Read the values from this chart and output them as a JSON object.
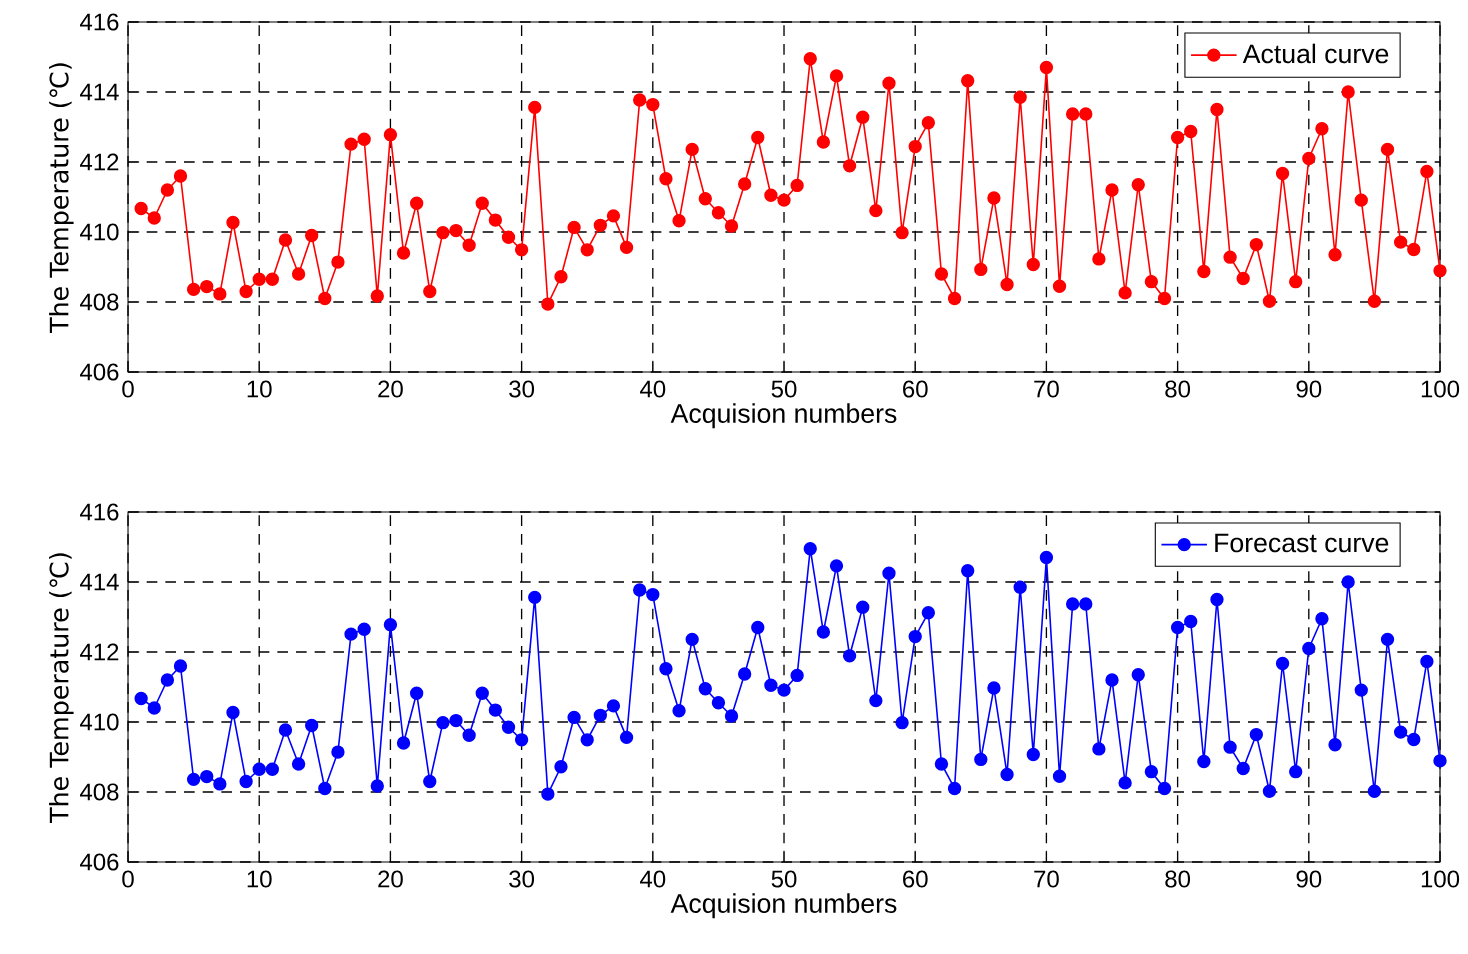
{
  "chart_data": [
    {
      "type": "line",
      "xlabel": "Acquision numbers",
      "ylabel": "The Temperature (℃)",
      "xlim": [
        0,
        100
      ],
      "xticks": [
        0,
        10,
        20,
        30,
        40,
        50,
        60,
        70,
        80,
        90,
        100
      ],
      "ylim": [
        406,
        416
      ],
      "yticks": [
        406,
        408,
        410,
        412,
        414,
        416
      ],
      "grid": true,
      "legend": "top right",
      "marker": "circle",
      "x": [
        1,
        2,
        3,
        4,
        5,
        6,
        7,
        8,
        9,
        10,
        11,
        12,
        13,
        14,
        15,
        16,
        17,
        18,
        19,
        20,
        21,
        22,
        23,
        24,
        25,
        26,
        27,
        28,
        29,
        30,
        31,
        32,
        33,
        34,
        35,
        36,
        37,
        38,
        39,
        40,
        41,
        42,
        43,
        44,
        45,
        46,
        47,
        48,
        49,
        50,
        51,
        52,
        53,
        54,
        55,
        56,
        57,
        58,
        59,
        60,
        61,
        62,
        63,
        64,
        65,
        66,
        67,
        68,
        69,
        70,
        71,
        72,
        73,
        74,
        75,
        76,
        77,
        78,
        79,
        80,
        81,
        82,
        83,
        84,
        85,
        86,
        87,
        88,
        89,
        90,
        91,
        92,
        93,
        94,
        95,
        96,
        97,
        98,
        99,
        100
      ],
      "series": [
        {
          "name": "Actual curve",
          "color": "#ff0000",
          "values": [
            410.67,
            410.4,
            411.2,
            411.6,
            408.36,
            408.44,
            408.23,
            410.27,
            408.3,
            408.65,
            408.65,
            409.77,
            408.8,
            409.9,
            408.1,
            409.14,
            412.51,
            412.65,
            408.17,
            412.78,
            409.4,
            410.82,
            408.3,
            409.98,
            410.04,
            409.62,
            410.82,
            410.34,
            409.85,
            409.49,
            413.56,
            407.94,
            408.72,
            410.13,
            409.49,
            410.19,
            410.46,
            409.56,
            413.77,
            413.64,
            411.52,
            410.32,
            412.36,
            410.95,
            410.55,
            410.17,
            411.37,
            412.7,
            411.05,
            410.91,
            411.33,
            414.95,
            412.57,
            414.46,
            411.89,
            413.28,
            410.61,
            414.25,
            409.98,
            412.44,
            413.12,
            408.8,
            408.1,
            414.32,
            408.93,
            410.97,
            408.5,
            413.85,
            409.07,
            414.7,
            408.45,
            413.37,
            413.37,
            409.23,
            411.2,
            408.26,
            411.35,
            408.58,
            408.1,
            412.7,
            412.87,
            408.87,
            413.5,
            409.28,
            408.67,
            409.64,
            408.02,
            411.67,
            408.58,
            412.1,
            412.95,
            409.35,
            414.0,
            410.91,
            408.02,
            412.36,
            409.71,
            409.5,
            411.73,
            408.89
          ]
        }
      ]
    },
    {
      "type": "line",
      "xlabel": "Acquision numbers",
      "ylabel": "The Temperature (℃)",
      "xlim": [
        0,
        100
      ],
      "xticks": [
        0,
        10,
        20,
        30,
        40,
        50,
        60,
        70,
        80,
        90,
        100
      ],
      "ylim": [
        406,
        416
      ],
      "yticks": [
        406,
        408,
        410,
        412,
        414,
        416
      ],
      "grid": true,
      "legend": "top right",
      "marker": "circle",
      "x": [
        1,
        2,
        3,
        4,
        5,
        6,
        7,
        8,
        9,
        10,
        11,
        12,
        13,
        14,
        15,
        16,
        17,
        18,
        19,
        20,
        21,
        22,
        23,
        24,
        25,
        26,
        27,
        28,
        29,
        30,
        31,
        32,
        33,
        34,
        35,
        36,
        37,
        38,
        39,
        40,
        41,
        42,
        43,
        44,
        45,
        46,
        47,
        48,
        49,
        50,
        51,
        52,
        53,
        54,
        55,
        56,
        57,
        58,
        59,
        60,
        61,
        62,
        63,
        64,
        65,
        66,
        67,
        68,
        69,
        70,
        71,
        72,
        73,
        74,
        75,
        76,
        77,
        78,
        79,
        80,
        81,
        82,
        83,
        84,
        85,
        86,
        87,
        88,
        89,
        90,
        91,
        92,
        93,
        94,
        95,
        96,
        97,
        98,
        99,
        100
      ],
      "series": [
        {
          "name": "Forecast curve",
          "color": "#0000ff",
          "values": [
            410.67,
            410.4,
            411.2,
            411.6,
            408.36,
            408.44,
            408.23,
            410.27,
            408.3,
            408.65,
            408.65,
            409.77,
            408.8,
            409.9,
            408.1,
            409.14,
            412.51,
            412.65,
            408.17,
            412.78,
            409.4,
            410.82,
            408.3,
            409.98,
            410.04,
            409.62,
            410.82,
            410.34,
            409.85,
            409.49,
            413.56,
            407.94,
            408.72,
            410.13,
            409.49,
            410.19,
            410.46,
            409.56,
            413.77,
            413.64,
            411.52,
            410.32,
            412.36,
            410.95,
            410.55,
            410.17,
            411.37,
            412.7,
            411.05,
            410.91,
            411.33,
            414.95,
            412.57,
            414.46,
            411.89,
            413.28,
            410.61,
            414.25,
            409.98,
            412.44,
            413.12,
            408.8,
            408.1,
            414.32,
            408.93,
            410.97,
            408.5,
            413.85,
            409.07,
            414.7,
            408.45,
            413.37,
            413.37,
            409.23,
            411.2,
            408.26,
            411.35,
            408.58,
            408.1,
            412.7,
            412.87,
            408.87,
            413.5,
            409.28,
            408.67,
            409.64,
            408.02,
            411.67,
            408.58,
            412.1,
            412.95,
            409.35,
            414.0,
            410.91,
            408.02,
            412.36,
            409.71,
            409.5,
            411.73,
            408.89
          ]
        }
      ]
    }
  ]
}
